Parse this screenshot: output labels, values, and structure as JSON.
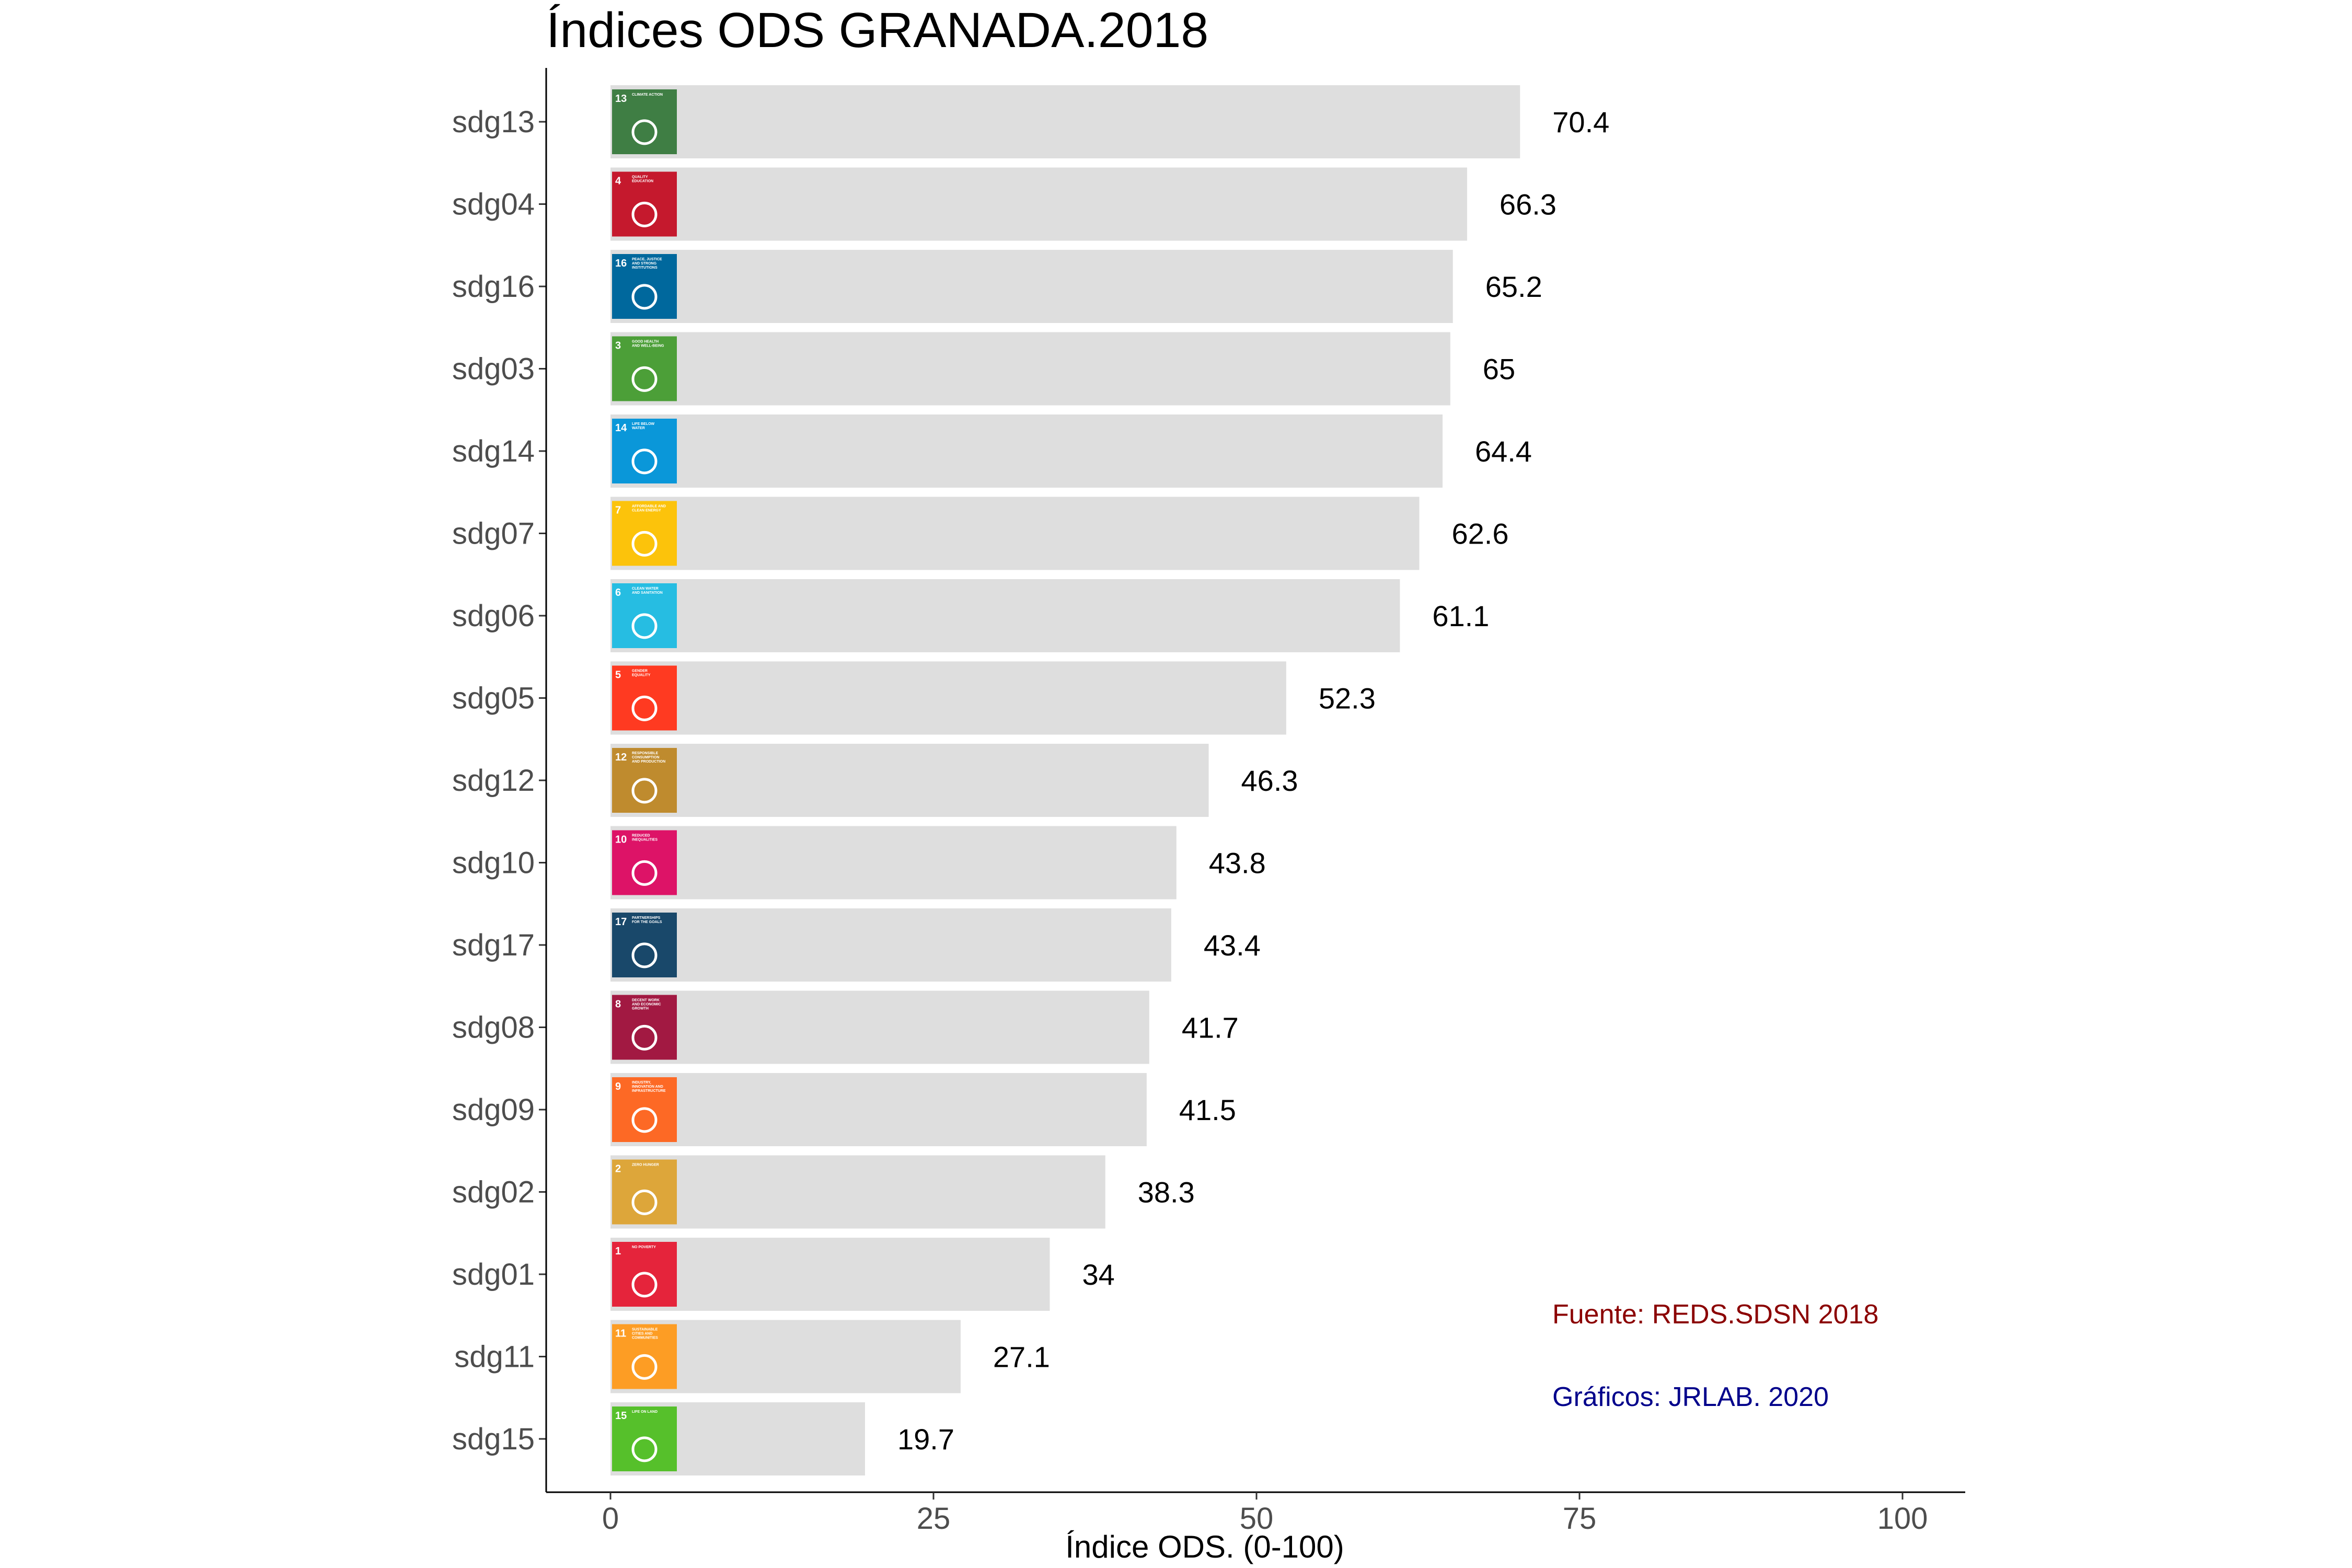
{
  "chart_data": {
    "type": "bar",
    "orientation": "horizontal",
    "title": "Índices ODS GRANADA.2018",
    "xlabel": "Índice ODS. (0-100)",
    "ylabel": "",
    "xlim": [
      0,
      100
    ],
    "xticks": [
      0,
      25,
      50,
      75,
      100
    ],
    "grid": false,
    "bar_color": "#dedede",
    "categories": [
      "sdg13",
      "sdg04",
      "sdg16",
      "sdg03",
      "sdg14",
      "sdg07",
      "sdg06",
      "sdg05",
      "sdg12",
      "sdg10",
      "sdg17",
      "sdg08",
      "sdg09",
      "sdg02",
      "sdg01",
      "sdg11",
      "sdg15"
    ],
    "values": [
      70.4,
      66.3,
      65.2,
      65,
      64.4,
      62.6,
      61.1,
      52.3,
      46.3,
      43.8,
      43.4,
      41.7,
      41.5,
      38.3,
      34,
      27.1,
      19.7
    ],
    "value_labels": [
      "70.4",
      "66.3",
      "65.2",
      "65",
      "64.4",
      "62.6",
      "61.1",
      "52.3",
      "46.3",
      "43.8",
      "43.4",
      "41.7",
      "41.5",
      "38.3",
      "34",
      "27.1",
      "19.7"
    ],
    "icons": [
      {
        "number": "13",
        "text": "CLIMATE ACTION",
        "color": "#3f7e44"
      },
      {
        "number": "4",
        "text": "QUALITY EDUCATION",
        "color": "#c5192d"
      },
      {
        "number": "16",
        "text": "PEACE, JUSTICE AND STRONG INSTITUTIONS",
        "color": "#00689d"
      },
      {
        "number": "3",
        "text": "GOOD HEALTH AND WELL-BEING",
        "color": "#4c9f38"
      },
      {
        "number": "14",
        "text": "LIFE BELOW WATER",
        "color": "#0a97d9"
      },
      {
        "number": "7",
        "text": "AFFORDABLE AND CLEAN ENERGY",
        "color": "#fcc30b"
      },
      {
        "number": "6",
        "text": "CLEAN WATER AND SANITATION",
        "color": "#26bde2"
      },
      {
        "number": "5",
        "text": "GENDER EQUALITY",
        "color": "#ff3a21"
      },
      {
        "number": "12",
        "text": "RESPONSIBLE CONSUMPTION AND PRODUCTION",
        "color": "#bf8b2e"
      },
      {
        "number": "10",
        "text": "REDUCED INEQUALITIES",
        "color": "#dd1367"
      },
      {
        "number": "17",
        "text": "PARTNERSHIPS FOR THE GOALS",
        "color": "#19486a"
      },
      {
        "number": "8",
        "text": "DECENT WORK AND ECONOMIC GROWTH",
        "color": "#a21942"
      },
      {
        "number": "9",
        "text": "INDUSTRY, INNOVATION AND INFRASTRUCTURE",
        "color": "#fd6925"
      },
      {
        "number": "2",
        "text": "ZERO HUNGER",
        "color": "#dda63a"
      },
      {
        "number": "1",
        "text": "NO POVERTY",
        "color": "#e5243b"
      },
      {
        "number": "11",
        "text": "SUSTAINABLE CITIES AND COMMUNITIES",
        "color": "#fd9d24"
      },
      {
        "number": "15",
        "text": "LIFE ON LAND",
        "color": "#56c02b"
      }
    ],
    "annotations": [
      {
        "text": "Fuente: REDS.SDSN 2018",
        "color": "#8b0000"
      },
      {
        "text": "Gráficos: JRLAB. 2020",
        "color": "#00008b"
      }
    ]
  }
}
